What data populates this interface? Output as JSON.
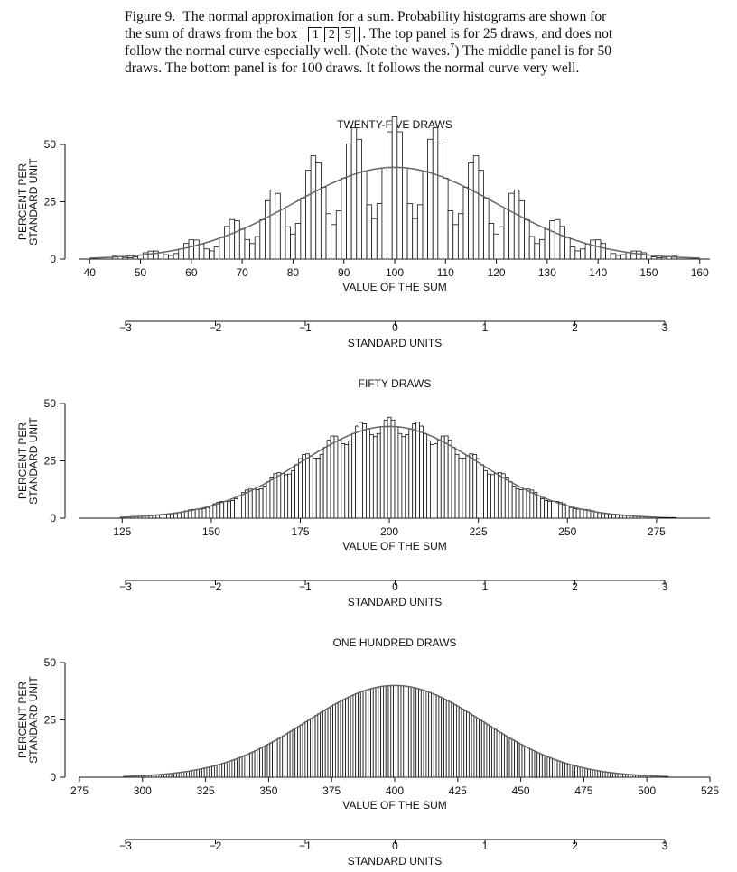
{
  "caption": {
    "figure_label": "Figure 9.",
    "text_1": "The normal approximation for a sum.   Probability histograms are shown for the sum of draws from the box",
    "box_tickets": [
      "1",
      "2",
      "9"
    ],
    "text_2": ". The top panel is for 25 draws, and does not follow the normal curve especially well. (Note the waves.",
    "footnote": "7",
    "text_3": ") The middle panel is for 50 draws. The bottom panel is for 100 draws. It follows the normal curve very well."
  },
  "colors": {
    "bars": "#111111",
    "curve": "#666666",
    "background": "#ffffff"
  },
  "chart_data": [
    {
      "type": "bar",
      "title": "TWENTY-FIVE DRAWS",
      "xlabel": "VALUE OF THE SUM",
      "ylabel_lines": [
        "PERCENT PER",
        "STANDARD UNIT"
      ],
      "ylim": [
        0,
        50
      ],
      "yticks": [
        0,
        25,
        50
      ],
      "xlim": [
        38,
        162
      ],
      "xticks": [
        40,
        50,
        60,
        70,
        80,
        90,
        100,
        110,
        120,
        130,
        140,
        150,
        160
      ],
      "bin_width": 1,
      "range": [
        45,
        155
      ],
      "mean": 100,
      "sd": 20,
      "wave_amplitude": 0.55,
      "wave_period": 8,
      "curve": "normal",
      "standard_units": {
        "label": "STANDARD UNITS",
        "ticks": [
          "−3",
          "−2",
          "−1",
          "0",
          "1",
          "2",
          "3"
        ]
      }
    },
    {
      "type": "bar",
      "title": "FIFTY DRAWS",
      "xlabel": "VALUE OF THE SUM",
      "ylabel_lines": [
        "PERCENT PER",
        "STANDARD UNIT"
      ],
      "ylim": [
        0,
        50
      ],
      "yticks": [
        0,
        25,
        50
      ],
      "xlim": [
        113,
        290
      ],
      "xticks": [
        125,
        150,
        175,
        200,
        225,
        250,
        275
      ],
      "bin_width": 1,
      "range": [
        125,
        280
      ],
      "mean": 200,
      "sd": 25,
      "wave_amplitude": 0.1,
      "wave_period": 8,
      "curve": "normal",
      "standard_units": {
        "label": "STANDARD UNITS",
        "ticks": [
          "−3",
          "−2",
          "−1",
          "0",
          "1",
          "2",
          "3"
        ]
      }
    },
    {
      "type": "bar",
      "title": "ONE HUNDRED DRAWS",
      "xlabel": "VALUE OF THE SUM",
      "ylabel_lines": [
        "PERCENT PER",
        "STANDARD UNIT"
      ],
      "ylim": [
        0,
        50
      ],
      "yticks": [
        0,
        25,
        50
      ],
      "xlim": [
        275,
        525
      ],
      "xticks": [
        275,
        300,
        325,
        350,
        375,
        400,
        425,
        450,
        475,
        500,
        525
      ],
      "bin_width": 1,
      "range": [
        293,
        508
      ],
      "mean": 400,
      "sd": 35,
      "wave_amplitude": 0.0,
      "wave_period": 8,
      "curve": "normal",
      "standard_units": {
        "label": "STANDARD UNITS",
        "ticks": [
          "−3",
          "−2",
          "−1",
          "0",
          "1",
          "2",
          "3"
        ]
      }
    }
  ]
}
